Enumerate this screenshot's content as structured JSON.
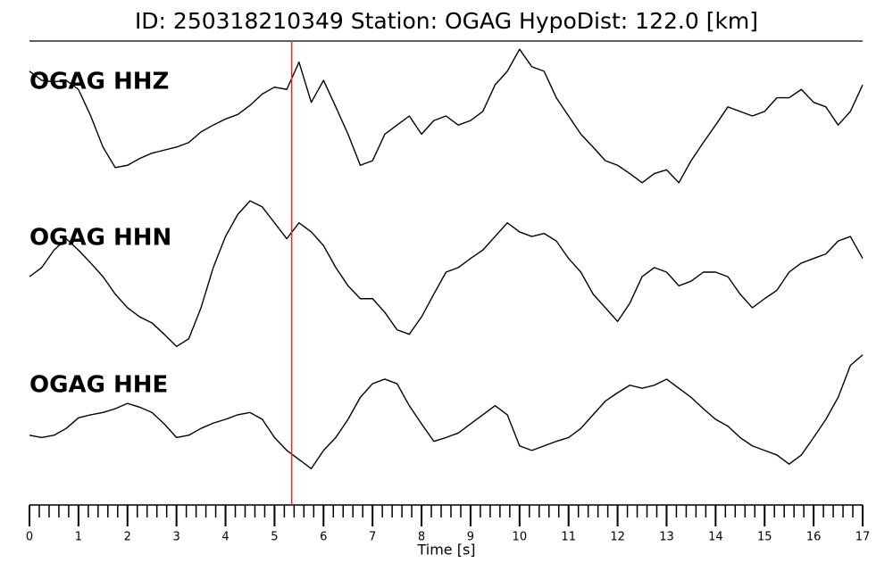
{
  "chart_data": {
    "type": "line",
    "title": "ID: 250318210349   Station: OGAG   HypoDist:   122.0 [km]",
    "xlabel": "Time [s]",
    "xlim": [
      0,
      17
    ],
    "xticks": [
      0,
      1,
      2,
      3,
      4,
      5,
      6,
      7,
      8,
      9,
      10,
      11,
      12,
      13,
      14,
      15,
      16,
      17
    ],
    "xminorticks": [
      0.2,
      0.4,
      0.6,
      0.8,
      1.2,
      1.4,
      1.6,
      1.8,
      2.2,
      2.4,
      2.6,
      2.8,
      3.2,
      3.4,
      3.6,
      3.8,
      4.2,
      4.4,
      4.6,
      4.8,
      5.2,
      5.4,
      5.6,
      5.8,
      6.2,
      6.4,
      6.6,
      6.8,
      7.2,
      7.4,
      7.6,
      7.8,
      8.2,
      8.4,
      8.6,
      8.8,
      9.2,
      9.4,
      9.6,
      9.8,
      10.2,
      10.4,
      10.6,
      10.8,
      11.2,
      11.4,
      11.6,
      11.8,
      12.2,
      12.4,
      12.6,
      12.8,
      13.2,
      13.4,
      13.6,
      13.8,
      14.2,
      14.4,
      14.6,
      14.8,
      15.2,
      15.4,
      15.6,
      15.8,
      16.2,
      16.4,
      16.6,
      16.8
    ],
    "ylim": [
      -1,
      1
    ],
    "pick": {
      "x": 5.35,
      "color": "#e8281e"
    },
    "label_color": "#4c9a06",
    "x": [
      0,
      0.25,
      0.5,
      0.75,
      1,
      1.25,
      1.5,
      1.75,
      2,
      2.25,
      2.5,
      2.75,
      3,
      3.25,
      3.5,
      3.75,
      4,
      4.25,
      4.5,
      4.75,
      5,
      5.25,
      5.5,
      5.75,
      6,
      6.25,
      6.5,
      6.75,
      7,
      7.25,
      7.5,
      7.75,
      8,
      8.25,
      8.5,
      8.75,
      9,
      9.25,
      9.5,
      9.75,
      10,
      10.25,
      10.5,
      10.75,
      11,
      11.25,
      11.5,
      11.75,
      12,
      12.25,
      12.5,
      12.75,
      13,
      13.25,
      13.5,
      13.75,
      14,
      14.25,
      14.5,
      14.75,
      15,
      15.25,
      15.5,
      15.75,
      16,
      16.25,
      16.5,
      16.75,
      17
    ],
    "series": [
      {
        "name": "OGAG HHZ",
        "color": "#000000",
        "values": [
          0.59,
          0.47,
          0.45,
          0.47,
          0.35,
          0,
          -0.41,
          -0.68,
          -0.65,
          -0.56,
          -0.49,
          -0.45,
          -0.41,
          -0.35,
          -0.21,
          -0.12,
          -0.04,
          0.02,
          0.14,
          0.29,
          0.38,
          0.35,
          0.71,
          0.18,
          0.47,
          0.12,
          -0.24,
          -0.65,
          -0.59,
          -0.24,
          -0.12,
          0,
          -0.24,
          -0.06,
          0,
          -0.12,
          -0.06,
          0.06,
          0.41,
          0.59,
          0.88,
          0.65,
          0.59,
          0.24,
          0,
          -0.24,
          -0.41,
          -0.59,
          -0.65,
          -0.76,
          -0.88,
          -0.76,
          -0.71,
          -0.88,
          -0.59,
          -0.35,
          -0.12,
          0.12,
          0.06,
          0,
          0.06,
          0.24,
          0.24,
          0.35,
          0.18,
          0.12,
          -0.12,
          0.06,
          0.41
        ]
      },
      {
        "name": "OGAG HHN",
        "color": "#000000",
        "values": [
          -0.06,
          0.06,
          0.29,
          0.44,
          0.29,
          0.12,
          -0.06,
          -0.29,
          -0.47,
          -0.59,
          -0.67,
          -0.82,
          -0.98,
          -0.88,
          -0.47,
          0.06,
          0.47,
          0.76,
          0.94,
          0.86,
          0.65,
          0.44,
          0.65,
          0.53,
          0.35,
          0.06,
          -0.18,
          -0.35,
          -0.35,
          -0.53,
          -0.76,
          -0.82,
          -0.59,
          -0.29,
          0,
          0.06,
          0.18,
          0.29,
          0.47,
          0.65,
          0.53,
          0.47,
          0.51,
          0.41,
          0.18,
          0,
          -0.29,
          -0.47,
          -0.65,
          -0.41,
          -0.06,
          0.06,
          0,
          -0.18,
          -0.12,
          0,
          0,
          -0.06,
          -0.29,
          -0.47,
          -0.35,
          -0.24,
          0,
          0.12,
          0.18,
          0.24,
          0.41,
          0.47,
          0.18
        ]
      },
      {
        "name": "OGAG HHE",
        "color": "#000000",
        "values": [
          -0.21,
          -0.24,
          -0.21,
          -0.12,
          0.02,
          0.06,
          0.09,
          0.14,
          0.21,
          0.16,
          0.09,
          -0.06,
          -0.24,
          -0.21,
          -0.12,
          -0.05,
          0,
          0.06,
          0.09,
          0,
          -0.24,
          -0.41,
          -0.53,
          -0.65,
          -0.41,
          -0.24,
          0,
          0.29,
          0.47,
          0.53,
          0.47,
          0.18,
          -0.06,
          -0.29,
          -0.24,
          -0.18,
          -0.06,
          0.06,
          0.18,
          0.06,
          -0.35,
          -0.41,
          -0.35,
          -0.29,
          -0.24,
          -0.12,
          0.06,
          0.24,
          0.35,
          0.45,
          0.41,
          0.45,
          0.53,
          0.41,
          0.29,
          0.14,
          0,
          -0.09,
          -0.24,
          -0.35,
          -0.41,
          -0.47,
          -0.59,
          -0.47,
          -0.24,
          0,
          0.29,
          0.71,
          0.85
        ]
      }
    ]
  }
}
